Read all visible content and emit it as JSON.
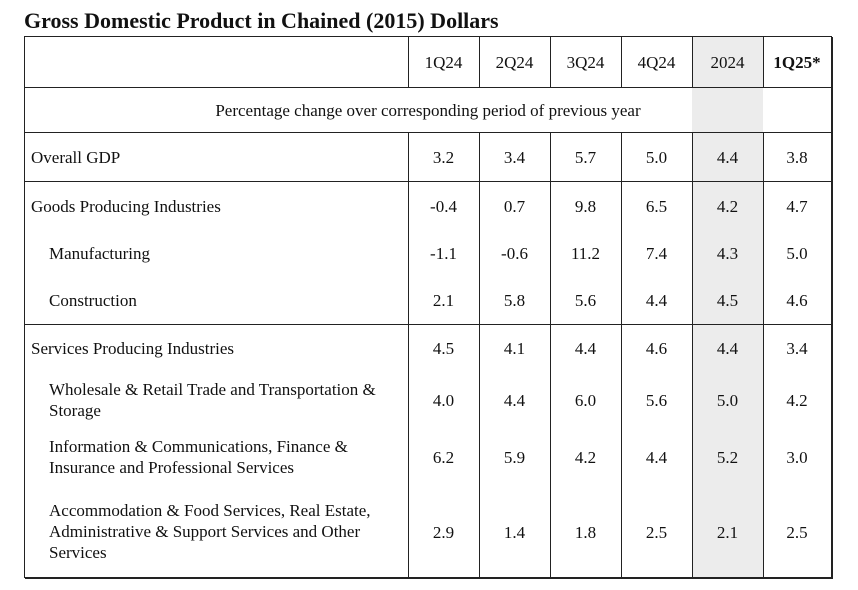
{
  "title": "Gross Domestic Product in Chained (2015) Dollars",
  "columns": [
    "1Q24",
    "2Q24",
    "3Q24",
    "4Q24",
    "2024",
    "1Q25*"
  ],
  "subheader": "Percentage change over corresponding period of previous year",
  "rows": [
    {
      "label": "Overall GDP",
      "values": [
        "3.2",
        "3.4",
        "5.7",
        "5.0",
        "4.4",
        "3.8"
      ]
    },
    {
      "label": "Goods Producing Industries",
      "values": [
        "-0.4",
        "0.7",
        "9.8",
        "6.5",
        "4.2",
        "4.7"
      ]
    },
    {
      "label": "Manufacturing",
      "values": [
        "-1.1",
        "-0.6",
        "11.2",
        "7.4",
        "4.3",
        "5.0"
      ]
    },
    {
      "label": "Construction",
      "values": [
        "2.1",
        "5.8",
        "5.6",
        "4.4",
        "4.5",
        "4.6"
      ]
    },
    {
      "label": "Services Producing Industries",
      "values": [
        "4.5",
        "4.1",
        "4.4",
        "4.6",
        "4.4",
        "3.4"
      ]
    },
    {
      "label": "Wholesale & Retail Trade and Transportation & Storage",
      "values": [
        "4.0",
        "4.4",
        "6.0",
        "5.6",
        "5.0",
        "4.2"
      ]
    },
    {
      "label": "Information & Communications, Finance & Insurance and Professional Services",
      "values": [
        "6.2",
        "5.9",
        "4.2",
        "4.4",
        "5.2",
        "3.0"
      ]
    },
    {
      "label": "Accommodation & Food Services, Real Estate, Administrative & Support Services and Other Services",
      "values": [
        "2.9",
        "1.4",
        "1.8",
        "2.5",
        "2.1",
        "2.5"
      ]
    }
  ]
}
